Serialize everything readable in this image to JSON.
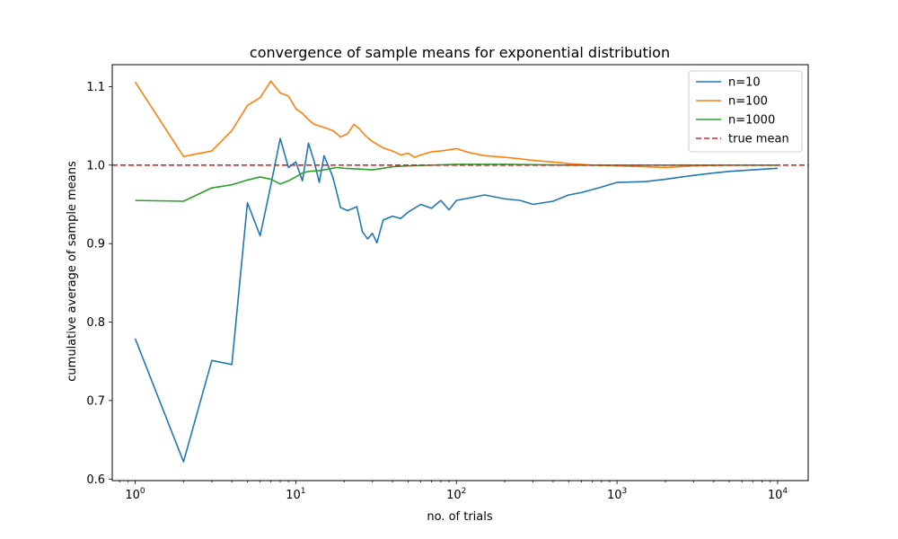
{
  "chart_data": {
    "type": "line",
    "title": "convergence of sample means for exponential distribution",
    "xlabel": "no. of trials",
    "ylabel": "cumulative average of sample means",
    "xscale": "log",
    "xlim": [
      0.72,
      15500
    ],
    "ylim": [
      0.598,
      1.128
    ],
    "grid": false,
    "legend_position": "top-right",
    "x_ticks": [
      {
        "value": 1,
        "base": "10",
        "exp": "0"
      },
      {
        "value": 10,
        "base": "10",
        "exp": "1"
      },
      {
        "value": 100,
        "base": "10",
        "exp": "2"
      },
      {
        "value": 1000,
        "base": "10",
        "exp": "3"
      },
      {
        "value": 10000,
        "base": "10",
        "exp": "4"
      }
    ],
    "y_ticks": [
      {
        "value": 0.6,
        "label": "0.6"
      },
      {
        "value": 0.7,
        "label": "0.7"
      },
      {
        "value": 0.8,
        "label": "0.8"
      },
      {
        "value": 0.9,
        "label": "0.9"
      },
      {
        "value": 1.0,
        "label": "1.0"
      },
      {
        "value": 1.1,
        "label": "1.1"
      }
    ],
    "reference_line": {
      "name": "true mean",
      "y": 1.0,
      "color": "#d62728",
      "style": "dashed"
    },
    "series": [
      {
        "name": "n=10",
        "color": "#1f77b4",
        "points": [
          [
            1,
            0.779
          ],
          [
            2,
            0.622
          ],
          [
            3,
            0.751
          ],
          [
            4,
            0.746
          ],
          [
            5,
            0.952
          ],
          [
            6,
            0.91
          ],
          [
            7,
            0.975
          ],
          [
            8,
            1.034
          ],
          [
            9,
            0.997
          ],
          [
            10,
            1.004
          ],
          [
            11,
            0.98
          ],
          [
            12,
            1.028
          ],
          [
            13,
            1.005
          ],
          [
            14,
            0.978
          ],
          [
            15,
            1.012
          ],
          [
            17,
            0.985
          ],
          [
            19,
            0.946
          ],
          [
            21,
            0.942
          ],
          [
            24,
            0.947
          ],
          [
            26,
            0.915
          ],
          [
            28,
            0.906
          ],
          [
            30,
            0.913
          ],
          [
            32,
            0.901
          ],
          [
            35,
            0.93
          ],
          [
            40,
            0.935
          ],
          [
            45,
            0.932
          ],
          [
            50,
            0.94
          ],
          [
            60,
            0.95
          ],
          [
            70,
            0.945
          ],
          [
            80,
            0.955
          ],
          [
            90,
            0.943
          ],
          [
            100,
            0.955
          ],
          [
            120,
            0.958
          ],
          [
            150,
            0.962
          ],
          [
            200,
            0.957
          ],
          [
            250,
            0.955
          ],
          [
            300,
            0.95
          ],
          [
            400,
            0.954
          ],
          [
            500,
            0.962
          ],
          [
            600,
            0.965
          ],
          [
            800,
            0.972
          ],
          [
            1000,
            0.978
          ],
          [
            1500,
            0.979
          ],
          [
            2000,
            0.982
          ],
          [
            3000,
            0.987
          ],
          [
            4000,
            0.99
          ],
          [
            5000,
            0.992
          ],
          [
            7000,
            0.994
          ],
          [
            10000,
            0.996
          ]
        ]
      },
      {
        "name": "n=100",
        "color": "#ff7f0e",
        "points": [
          [
            1,
            1.106
          ],
          [
            2,
            1.011
          ],
          [
            3,
            1.018
          ],
          [
            4,
            1.044
          ],
          [
            5,
            1.076
          ],
          [
            6,
            1.086
          ],
          [
            7,
            1.107
          ],
          [
            8,
            1.092
          ],
          [
            9,
            1.088
          ],
          [
            10,
            1.072
          ],
          [
            11,
            1.066
          ],
          [
            12,
            1.058
          ],
          [
            13,
            1.052
          ],
          [
            15,
            1.048
          ],
          [
            17,
            1.044
          ],
          [
            19,
            1.036
          ],
          [
            21,
            1.04
          ],
          [
            23,
            1.052
          ],
          [
            25,
            1.046
          ],
          [
            27,
            1.038
          ],
          [
            30,
            1.03
          ],
          [
            35,
            1.022
          ],
          [
            40,
            1.018
          ],
          [
            45,
            1.013
          ],
          [
            50,
            1.015
          ],
          [
            55,
            1.01
          ],
          [
            60,
            1.013
          ],
          [
            70,
            1.017
          ],
          [
            80,
            1.018
          ],
          [
            100,
            1.021
          ],
          [
            120,
            1.016
          ],
          [
            150,
            1.012
          ],
          [
            200,
            1.01
          ],
          [
            250,
            1.008
          ],
          [
            300,
            1.006
          ],
          [
            400,
            1.004
          ],
          [
            500,
            1.002
          ],
          [
            700,
            1.0
          ],
          [
            1000,
            0.999
          ],
          [
            1500,
            0.998
          ],
          [
            2000,
            0.997
          ],
          [
            3000,
            0.999
          ],
          [
            5000,
            1.0
          ],
          [
            10000,
            1.0
          ]
        ]
      },
      {
        "name": "n=1000",
        "color": "#2ca02c",
        "points": [
          [
            1,
            0.955
          ],
          [
            2,
            0.954
          ],
          [
            3,
            0.971
          ],
          [
            4,
            0.975
          ],
          [
            5,
            0.981
          ],
          [
            6,
            0.985
          ],
          [
            7,
            0.982
          ],
          [
            8,
            0.976
          ],
          [
            9,
            0.98
          ],
          [
            10,
            0.985
          ],
          [
            11,
            0.99
          ],
          [
            12,
            0.992
          ],
          [
            14,
            0.993
          ],
          [
            16,
            0.995
          ],
          [
            18,
            0.997
          ],
          [
            20,
            0.996
          ],
          [
            25,
            0.995
          ],
          [
            30,
            0.994
          ],
          [
            35,
            0.996
          ],
          [
            40,
            0.998
          ],
          [
            50,
            0.999
          ],
          [
            70,
            1.0
          ],
          [
            100,
            1.001
          ],
          [
            200,
            1.001
          ],
          [
            500,
            1.0
          ],
          [
            1000,
            1.0
          ],
          [
            3000,
            1.0
          ],
          [
            10000,
            1.0
          ]
        ]
      }
    ]
  }
}
